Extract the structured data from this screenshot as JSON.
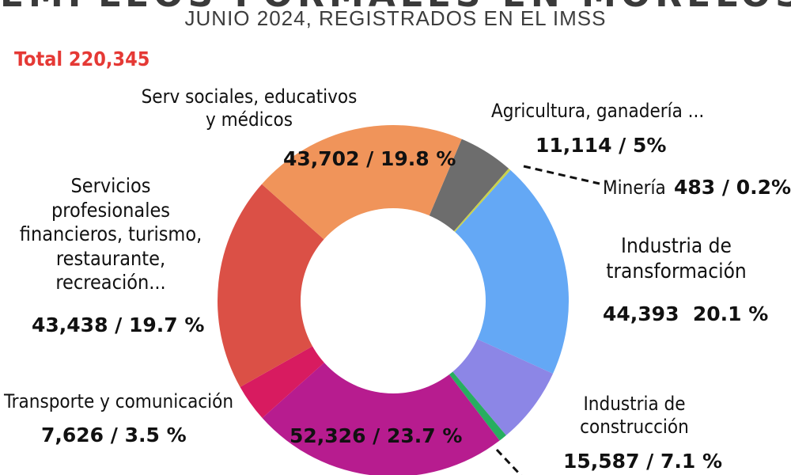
{
  "header": {
    "title": "EMPLEOS FORMALES EN MORELOS",
    "subtitle": "JUNIO 2024, REGISTRADOS EN EL IMSS",
    "total": "Total 220,345"
  },
  "chart_data": {
    "type": "pie",
    "donut": true,
    "title": "EMPLEOS FORMALES EN MORELOS",
    "subtitle": "JUNIO 2024, REGISTRADOS EN EL IMSS",
    "total": 220345,
    "slices": [
      {
        "name": "Agricultura, ganadería ...",
        "value": 11114,
        "percent": 5.0,
        "color": "#6d6d6d",
        "value_label": "11,114 / 5%"
      },
      {
        "name": "Minería",
        "value": 483,
        "percent": 0.2,
        "color": "#c9d24a",
        "value_label": "483 / 0.2%"
      },
      {
        "name": "Industria de transformación",
        "value": 44393,
        "percent": 20.1,
        "color": "#64a8f5",
        "value_label": "44,393 20.1 %"
      },
      {
        "name": "Industria de construcción",
        "value": 15587,
        "percent": 7.1,
        "color": "#8c86e6",
        "value_label": "15,587 / 7.1 %"
      },
      {
        "name": "",
        "value": 1676,
        "percent": 0.8,
        "color": "#27ae60",
        "value_label": ""
      },
      {
        "name": "",
        "value": 52326,
        "percent": 23.7,
        "color": "#b71c8f",
        "value_label": "52,326 / 23.7 %"
      },
      {
        "name": "Transporte y comunicación",
        "value": 7626,
        "percent": 3.5,
        "color": "#d81b60",
        "value_label": "7,626 / 3.5 %"
      },
      {
        "name": "Servicios profesionales financieros, turismo, restaurante, recreación...",
        "value": 43438,
        "percent": 19.7,
        "color": "#db5046",
        "value_label": "43,438 / 19.7 %"
      },
      {
        "name": "Serv sociales, educativos y médicos",
        "value": 43702,
        "percent": 19.8,
        "color": "#f0945a",
        "value_label": "43,702 / 19.8 %"
      }
    ]
  },
  "labels": {
    "serv_sociales_1": "Serv sociales, educativos",
    "serv_sociales_2": "y médicos",
    "serv_sociales_val": "43,702 / 19.8 %",
    "agricultura": "Agricultura, ganadería ...",
    "agricultura_val": "11,114 / 5%",
    "mineria": "Minería",
    "mineria_val": "483 / 0.2%",
    "ind_transf_1": "Industria de",
    "ind_transf_2": "transformación",
    "ind_transf_val": "44,393  20.1 %",
    "servicios_1": "Servicios",
    "servicios_2": "profesionales",
    "servicios_3": "financieros, turismo,",
    "servicios_4": "restaurante,",
    "servicios_5": "recreación...",
    "servicios_val": "43,438 / 19.7 %",
    "transporte": "Transporte y comunicación",
    "transporte_val": "7,626 / 3.5 %",
    "comercio_val": "52,326 / 23.7 %",
    "ind_constr_1": "Industria de",
    "ind_constr_2": "construcción",
    "ind_constr_val": "15,587 / 7.1 %"
  }
}
